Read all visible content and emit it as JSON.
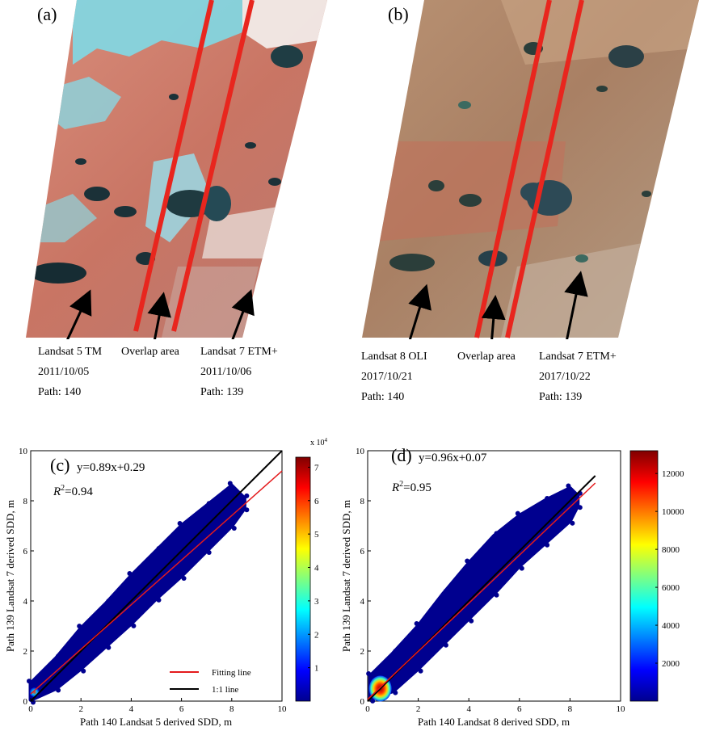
{
  "panels": {
    "a": {
      "letter": "(a)",
      "captions": [
        {
          "lines": [
            "Landsat 5 TM",
            "2011/10/05",
            "Path: 140"
          ]
        },
        {
          "lines": [
            "Overlap area"
          ]
        },
        {
          "lines": [
            "Landsat 7 ETM+",
            "2011/10/06",
            "Path: 139"
          ]
        }
      ]
    },
    "b": {
      "letter": "(b)",
      "captions": [
        {
          "lines": [
            "Landsat 8 OLI",
            "2017/10/21",
            "Path: 140"
          ]
        },
        {
          "lines": [
            "Overlap area"
          ]
        },
        {
          "lines": [
            "Landsat 7 ETM+",
            "2017/10/22",
            "Path: 139"
          ]
        }
      ]
    }
  },
  "colors": {
    "overlap_line": "#e8261e",
    "fit_line": "#e41a1c",
    "one_to_one": "#000000",
    "point": "#00008f",
    "arrow": "#000000"
  },
  "chart_data": [
    {
      "type": "scatter",
      "panel": "(c)",
      "equation": "y=0.89x+0.29",
      "r2_label": "R²=0.94",
      "r2_symbol": "R",
      "r2_sup": "2",
      "r2_value": "=0.94",
      "fit": {
        "slope": 0.89,
        "intercept": 0.29
      },
      "xlabel": "Path 140 Landsat 5 derived SDD, m",
      "ylabel": "Path 139 Landsat 7 derived SDD, m",
      "xlim": [
        0,
        10
      ],
      "ylim": [
        0,
        10
      ],
      "xticks": [
        "0",
        "2",
        "4",
        "6",
        "8",
        "10"
      ],
      "yticks": [
        "0",
        "2",
        "4",
        "6",
        "8",
        "10"
      ],
      "cloud_upper": [
        [
          0,
          0.7
        ],
        [
          1,
          1.7
        ],
        [
          2,
          2.9
        ],
        [
          3,
          3.9
        ],
        [
          4,
          5.0
        ],
        [
          5,
          6.0
        ],
        [
          6,
          7.0
        ],
        [
          7,
          7.8
        ],
        [
          8,
          8.6
        ],
        [
          8.5,
          8.1
        ]
      ],
      "cloud_lower": [
        [
          8.5,
          7.7
        ],
        [
          8,
          7.0
        ],
        [
          7,
          6.0
        ],
        [
          6,
          5.0
        ],
        [
          5,
          4.1
        ],
        [
          4,
          3.1
        ],
        [
          3,
          2.2
        ],
        [
          2,
          1.3
        ],
        [
          1,
          0.5
        ],
        [
          0,
          0.05
        ]
      ],
      "legend": {
        "position": "bottom-right",
        "items": [
          "Fitting line",
          "1:1 line"
        ]
      },
      "colorbar": {
        "exponent_label": "x 10",
        "exponent": "4",
        "ticks": [
          "1",
          "2",
          "3",
          "4",
          "5",
          "6",
          "7"
        ],
        "max": 7.3
      }
    },
    {
      "type": "scatter",
      "panel": "(d)",
      "equation": "y=0.96x+0.07",
      "r2_label": "R²=0.95",
      "r2_symbol": "R",
      "r2_sup": "2",
      "r2_value": "=0.95",
      "fit": {
        "slope": 0.96,
        "intercept": 0.07
      },
      "xlabel": "Path 140 Landsat 8 derived SDD, m",
      "ylabel": "Path 139 Landsat 7 derived SDD, m",
      "xlim": [
        0,
        10
      ],
      "ylim": [
        0,
        10
      ],
      "xticks": [
        "0",
        "2",
        "4",
        "6",
        "8",
        "10"
      ],
      "yticks": [
        "0",
        "2",
        "4",
        "6",
        "8",
        "10"
      ],
      "cloud_upper": [
        [
          0.1,
          1.0
        ],
        [
          1,
          1.9
        ],
        [
          2,
          3.0
        ],
        [
          3,
          4.3
        ],
        [
          4,
          5.5
        ],
        [
          5,
          6.6
        ],
        [
          6,
          7.4
        ],
        [
          7,
          8.0
        ],
        [
          8,
          8.5
        ],
        [
          8.3,
          8.2
        ]
      ],
      "cloud_lower": [
        [
          8.3,
          7.8
        ],
        [
          8,
          7.2
        ],
        [
          7,
          6.3
        ],
        [
          6,
          5.4
        ],
        [
          5,
          4.3
        ],
        [
          4,
          3.3
        ],
        [
          3,
          2.3
        ],
        [
          2,
          1.3
        ],
        [
          1,
          0.4
        ],
        [
          0.1,
          0.1
        ]
      ],
      "hotspot": {
        "x": 0.5,
        "y": 0.5
      },
      "colorbar": {
        "ticks": [
          "2000",
          "4000",
          "6000",
          "8000",
          "10000",
          "12000"
        ],
        "max": 13200
      }
    }
  ]
}
